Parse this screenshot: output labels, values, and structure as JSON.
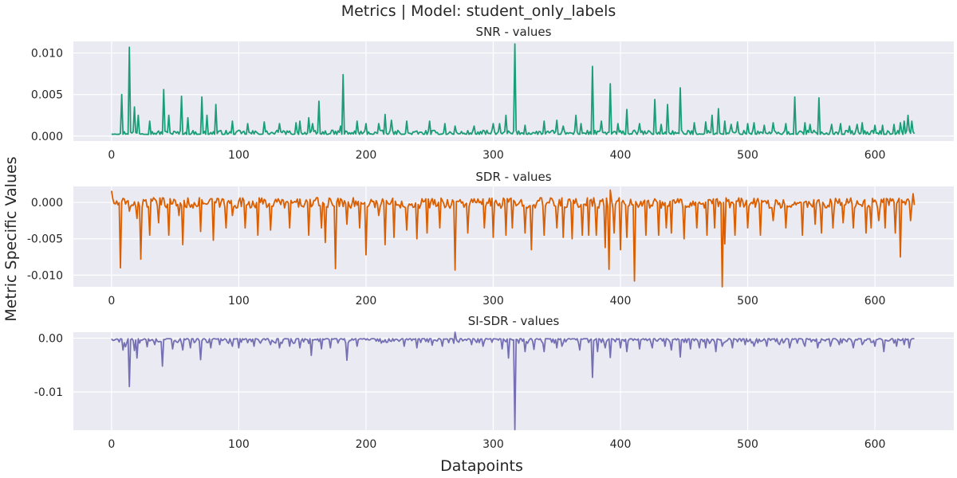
{
  "figure": {
    "title": "Metrics | Model: student_only_labels",
    "xlabel": "Datapoints",
    "ylabel": "Metric Specific Values",
    "background": "#eaeaf2"
  },
  "chart_data": [
    {
      "type": "line",
      "title": "SNR - values",
      "color": "#1b9e77",
      "xlim": [
        -30,
        662
      ],
      "ylim": [
        -0.0006,
        0.0114
      ],
      "x_ticks": [
        0,
        100,
        200,
        300,
        400,
        500,
        600
      ],
      "y_ticks": [
        0.0,
        0.005,
        0.01
      ],
      "y_tick_labels": [
        "0.000",
        "0.005",
        "0.010"
      ],
      "n_points": 632,
      "baseline": 0.0004,
      "noise": 0.0005,
      "noise_sign": "positive",
      "events": [
        [
          8,
          0.005
        ],
        [
          14,
          0.0107
        ],
        [
          18,
          0.0035
        ],
        [
          21,
          0.0025
        ],
        [
          30,
          0.0018
        ],
        [
          41,
          0.0056
        ],
        [
          45,
          0.0025
        ],
        [
          55,
          0.0048
        ],
        [
          60,
          0.0022
        ],
        [
          71,
          0.0047
        ],
        [
          75,
          0.0025
        ],
        [
          82,
          0.0038
        ],
        [
          95,
          0.0018
        ],
        [
          107,
          0.0015
        ],
        [
          120,
          0.0017
        ],
        [
          132,
          0.0015
        ],
        [
          145,
          0.0016
        ],
        [
          148,
          0.0018
        ],
        [
          155,
          0.0022
        ],
        [
          158,
          0.0015
        ],
        [
          163,
          0.0042
        ],
        [
          180,
          0.0012
        ],
        [
          182,
          0.0074
        ],
        [
          193,
          0.0018
        ],
        [
          200,
          0.0015
        ],
        [
          210,
          0.0015
        ],
        [
          215,
          0.0026
        ],
        [
          220,
          0.0019
        ],
        [
          232,
          0.0018
        ],
        [
          250,
          0.0018
        ],
        [
          262,
          0.0015
        ],
        [
          270,
          0.0012
        ],
        [
          285,
          0.0012
        ],
        [
          300,
          0.0015
        ],
        [
          305,
          0.0015
        ],
        [
          310,
          0.0025
        ],
        [
          317,
          0.0111
        ],
        [
          325,
          0.0013
        ],
        [
          340,
          0.0018
        ],
        [
          350,
          0.0019
        ],
        [
          355,
          0.0012
        ],
        [
          365,
          0.0025
        ],
        [
          369,
          0.0015
        ],
        [
          378,
          0.0084
        ],
        [
          385,
          0.0018
        ],
        [
          392,
          0.0063
        ],
        [
          398,
          0.0015
        ],
        [
          405,
          0.0032
        ],
        [
          415,
          0.0015
        ],
        [
          427,
          0.0044
        ],
        [
          432,
          0.0014
        ],
        [
          437,
          0.0038
        ],
        [
          447,
          0.0058
        ],
        [
          458,
          0.0016
        ],
        [
          467,
          0.0017
        ],
        [
          472,
          0.0025
        ],
        [
          477,
          0.0033
        ],
        [
          482,
          0.0018
        ],
        [
          487,
          0.0014
        ],
        [
          492,
          0.0017
        ],
        [
          500,
          0.0015
        ],
        [
          505,
          0.0016
        ],
        [
          513,
          0.0013
        ],
        [
          520,
          0.0016
        ],
        [
          530,
          0.0015
        ],
        [
          537,
          0.0047
        ],
        [
          545,
          0.0016
        ],
        [
          549,
          0.0014
        ],
        [
          556,
          0.0046
        ],
        [
          566,
          0.0014
        ],
        [
          573,
          0.0015
        ],
        [
          580,
          0.0012
        ],
        [
          586,
          0.0014
        ],
        [
          590,
          0.0016
        ],
        [
          600,
          0.0013
        ],
        [
          606,
          0.0013
        ],
        [
          615,
          0.0014
        ],
        [
          620,
          0.0016
        ],
        [
          623,
          0.0018
        ],
        [
          626,
          0.0025
        ],
        [
          629,
          0.0018
        ]
      ]
    },
    {
      "type": "line",
      "title": "SDR - values",
      "color": "#d95f02",
      "xlim": [
        -30,
        662
      ],
      "ylim": [
        -0.0116,
        0.0022
      ],
      "x_ticks": [
        0,
        100,
        200,
        300,
        400,
        500,
        600
      ],
      "y_ticks": [
        0.0,
        -0.005,
        -0.01
      ],
      "y_tick_labels": [
        "0.000",
        "-0.005",
        "-0.010"
      ],
      "n_points": 632,
      "baseline": 0.0001,
      "noise": 0.0006,
      "noise_sign": "both",
      "events": [
        [
          0,
          0.0016
        ],
        [
          7,
          -0.009
        ],
        [
          14,
          -0.0012
        ],
        [
          20,
          -0.0022
        ],
        [
          23,
          -0.0078
        ],
        [
          30,
          -0.0045
        ],
        [
          37,
          -0.0028
        ],
        [
          45,
          -0.0045
        ],
        [
          53,
          -0.0018
        ],
        [
          56,
          -0.0058
        ],
        [
          70,
          -0.004
        ],
        [
          80,
          -0.0052
        ],
        [
          90,
          -0.0035
        ],
        [
          95,
          -0.0018
        ],
        [
          105,
          -0.0035
        ],
        [
          115,
          -0.0045
        ],
        [
          125,
          -0.0038
        ],
        [
          140,
          -0.0035
        ],
        [
          155,
          -0.0045
        ],
        [
          165,
          -0.0035
        ],
        [
          168,
          -0.0055
        ],
        [
          176,
          -0.0091
        ],
        [
          185,
          -0.003
        ],
        [
          195,
          -0.0035
        ],
        [
          200,
          -0.0072
        ],
        [
          210,
          -0.0018
        ],
        [
          215,
          -0.0058
        ],
        [
          222,
          -0.0048
        ],
        [
          232,
          -0.0038
        ],
        [
          240,
          -0.005
        ],
        [
          248,
          -0.0042
        ],
        [
          258,
          -0.0035
        ],
        [
          270,
          -0.0093
        ],
        [
          280,
          -0.0042
        ],
        [
          293,
          -0.0035
        ],
        [
          300,
          -0.0048
        ],
        [
          310,
          -0.0045
        ],
        [
          315,
          -0.0035
        ],
        [
          325,
          -0.0042
        ],
        [
          330,
          -0.0065
        ],
        [
          340,
          -0.0045
        ],
        [
          350,
          -0.0035
        ],
        [
          355,
          -0.0048
        ],
        [
          362,
          -0.005
        ],
        [
          370,
          -0.0045
        ],
        [
          375,
          -0.0045
        ],
        [
          381,
          -0.0045
        ],
        [
          388,
          -0.0062
        ],
        [
          391,
          -0.0092
        ],
        [
          392,
          0.0017
        ],
        [
          395,
          -0.0042
        ],
        [
          400,
          -0.0065
        ],
        [
          405,
          -0.0048
        ],
        [
          411,
          -0.0108
        ],
        [
          420,
          -0.0045
        ],
        [
          430,
          -0.0045
        ],
        [
          436,
          -0.0035
        ],
        [
          440,
          -0.0042
        ],
        [
          450,
          -0.005
        ],
        [
          460,
          -0.0035
        ],
        [
          468,
          -0.0045
        ],
        [
          474,
          -0.0035
        ],
        [
          480,
          -0.0116
        ],
        [
          482,
          -0.0057
        ],
        [
          490,
          -0.0045
        ],
        [
          500,
          -0.0035
        ],
        [
          510,
          -0.0045
        ],
        [
          520,
          -0.0025
        ],
        [
          530,
          -0.0035
        ],
        [
          543,
          -0.0045
        ],
        [
          553,
          -0.003
        ],
        [
          558,
          -0.0042
        ],
        [
          567,
          -0.0035
        ],
        [
          575,
          -0.0028
        ],
        [
          583,
          -0.0035
        ],
        [
          593,
          -0.0042
        ],
        [
          597,
          -0.0035
        ],
        [
          603,
          -0.0025
        ],
        [
          608,
          -0.0035
        ],
        [
          616,
          -0.0042
        ],
        [
          620,
          -0.0075
        ],
        [
          628,
          -0.0025
        ],
        [
          630,
          0.0012
        ]
      ]
    },
    {
      "type": "line",
      "title": "SI-SDR - values",
      "color": "#7570b3",
      "xlim": [
        -30,
        662
      ],
      "ylim": [
        -0.0171,
        0.0011
      ],
      "x_ticks": [
        0,
        100,
        200,
        300,
        400,
        500,
        600
      ],
      "y_ticks": [
        0.0,
        -0.01
      ],
      "y_tick_labels": [
        "0.00",
        "-0.01"
      ],
      "n_points": 632,
      "baseline": -0.0001,
      "noise": 0.0003,
      "noise_sign": "negative",
      "events": [
        [
          9,
          -0.0022
        ],
        [
          11,
          -0.0016
        ],
        [
          14,
          -0.009
        ],
        [
          18,
          -0.0023
        ],
        [
          20,
          -0.0037
        ],
        [
          28,
          -0.0016
        ],
        [
          34,
          -0.0012
        ],
        [
          40,
          -0.0052
        ],
        [
          48,
          -0.002
        ],
        [
          56,
          -0.0022
        ],
        [
          62,
          -0.0018
        ],
        [
          70,
          -0.004
        ],
        [
          78,
          -0.0018
        ],
        [
          85,
          -0.0012
        ],
        [
          95,
          -0.0015
        ],
        [
          100,
          -0.0018
        ],
        [
          112,
          -0.0015
        ],
        [
          125,
          -0.0012
        ],
        [
          132,
          -0.0018
        ],
        [
          140,
          -0.0015
        ],
        [
          148,
          -0.0018
        ],
        [
          157,
          -0.0032
        ],
        [
          165,
          -0.002
        ],
        [
          172,
          -0.0018
        ],
        [
          185,
          -0.0041
        ],
        [
          193,
          -0.0015
        ],
        [
          230,
          -0.0015
        ],
        [
          240,
          -0.0018
        ],
        [
          252,
          -0.0013
        ],
        [
          260,
          -0.0015
        ],
        [
          270,
          0.0011
        ],
        [
          283,
          -0.0012
        ],
        [
          292,
          -0.0015
        ],
        [
          307,
          -0.002
        ],
        [
          312,
          -0.0037
        ],
        [
          317,
          -0.017
        ],
        [
          325,
          -0.0025
        ],
        [
          332,
          -0.0021
        ],
        [
          340,
          -0.0025
        ],
        [
          350,
          -0.0018
        ],
        [
          354,
          -0.0015
        ],
        [
          368,
          -0.0022
        ],
        [
          378,
          -0.0073
        ],
        [
          382,
          -0.0025
        ],
        [
          388,
          -0.0018
        ],
        [
          392,
          -0.0036
        ],
        [
          400,
          -0.0018
        ],
        [
          405,
          -0.0025
        ],
        [
          415,
          -0.002
        ],
        [
          425,
          -0.0018
        ],
        [
          435,
          -0.0015
        ],
        [
          440,
          -0.0022
        ],
        [
          447,
          -0.0035
        ],
        [
          455,
          -0.002
        ],
        [
          462,
          -0.0018
        ],
        [
          467,
          -0.0018
        ],
        [
          475,
          -0.0025
        ],
        [
          480,
          -0.0015
        ],
        [
          488,
          -0.0018
        ],
        [
          498,
          -0.0012
        ],
        [
          505,
          -0.0015
        ],
        [
          515,
          -0.0015
        ],
        [
          525,
          -0.0012
        ],
        [
          533,
          -0.0018
        ],
        [
          545,
          -0.0015
        ],
        [
          555,
          -0.0018
        ],
        [
          565,
          -0.0015
        ],
        [
          572,
          -0.0012
        ],
        [
          583,
          -0.0018
        ],
        [
          590,
          -0.0012
        ],
        [
          600,
          -0.0015
        ],
        [
          607,
          -0.0025
        ],
        [
          617,
          -0.0015
        ],
        [
          623,
          -0.0012
        ],
        [
          627,
          -0.0018
        ]
      ]
    }
  ]
}
